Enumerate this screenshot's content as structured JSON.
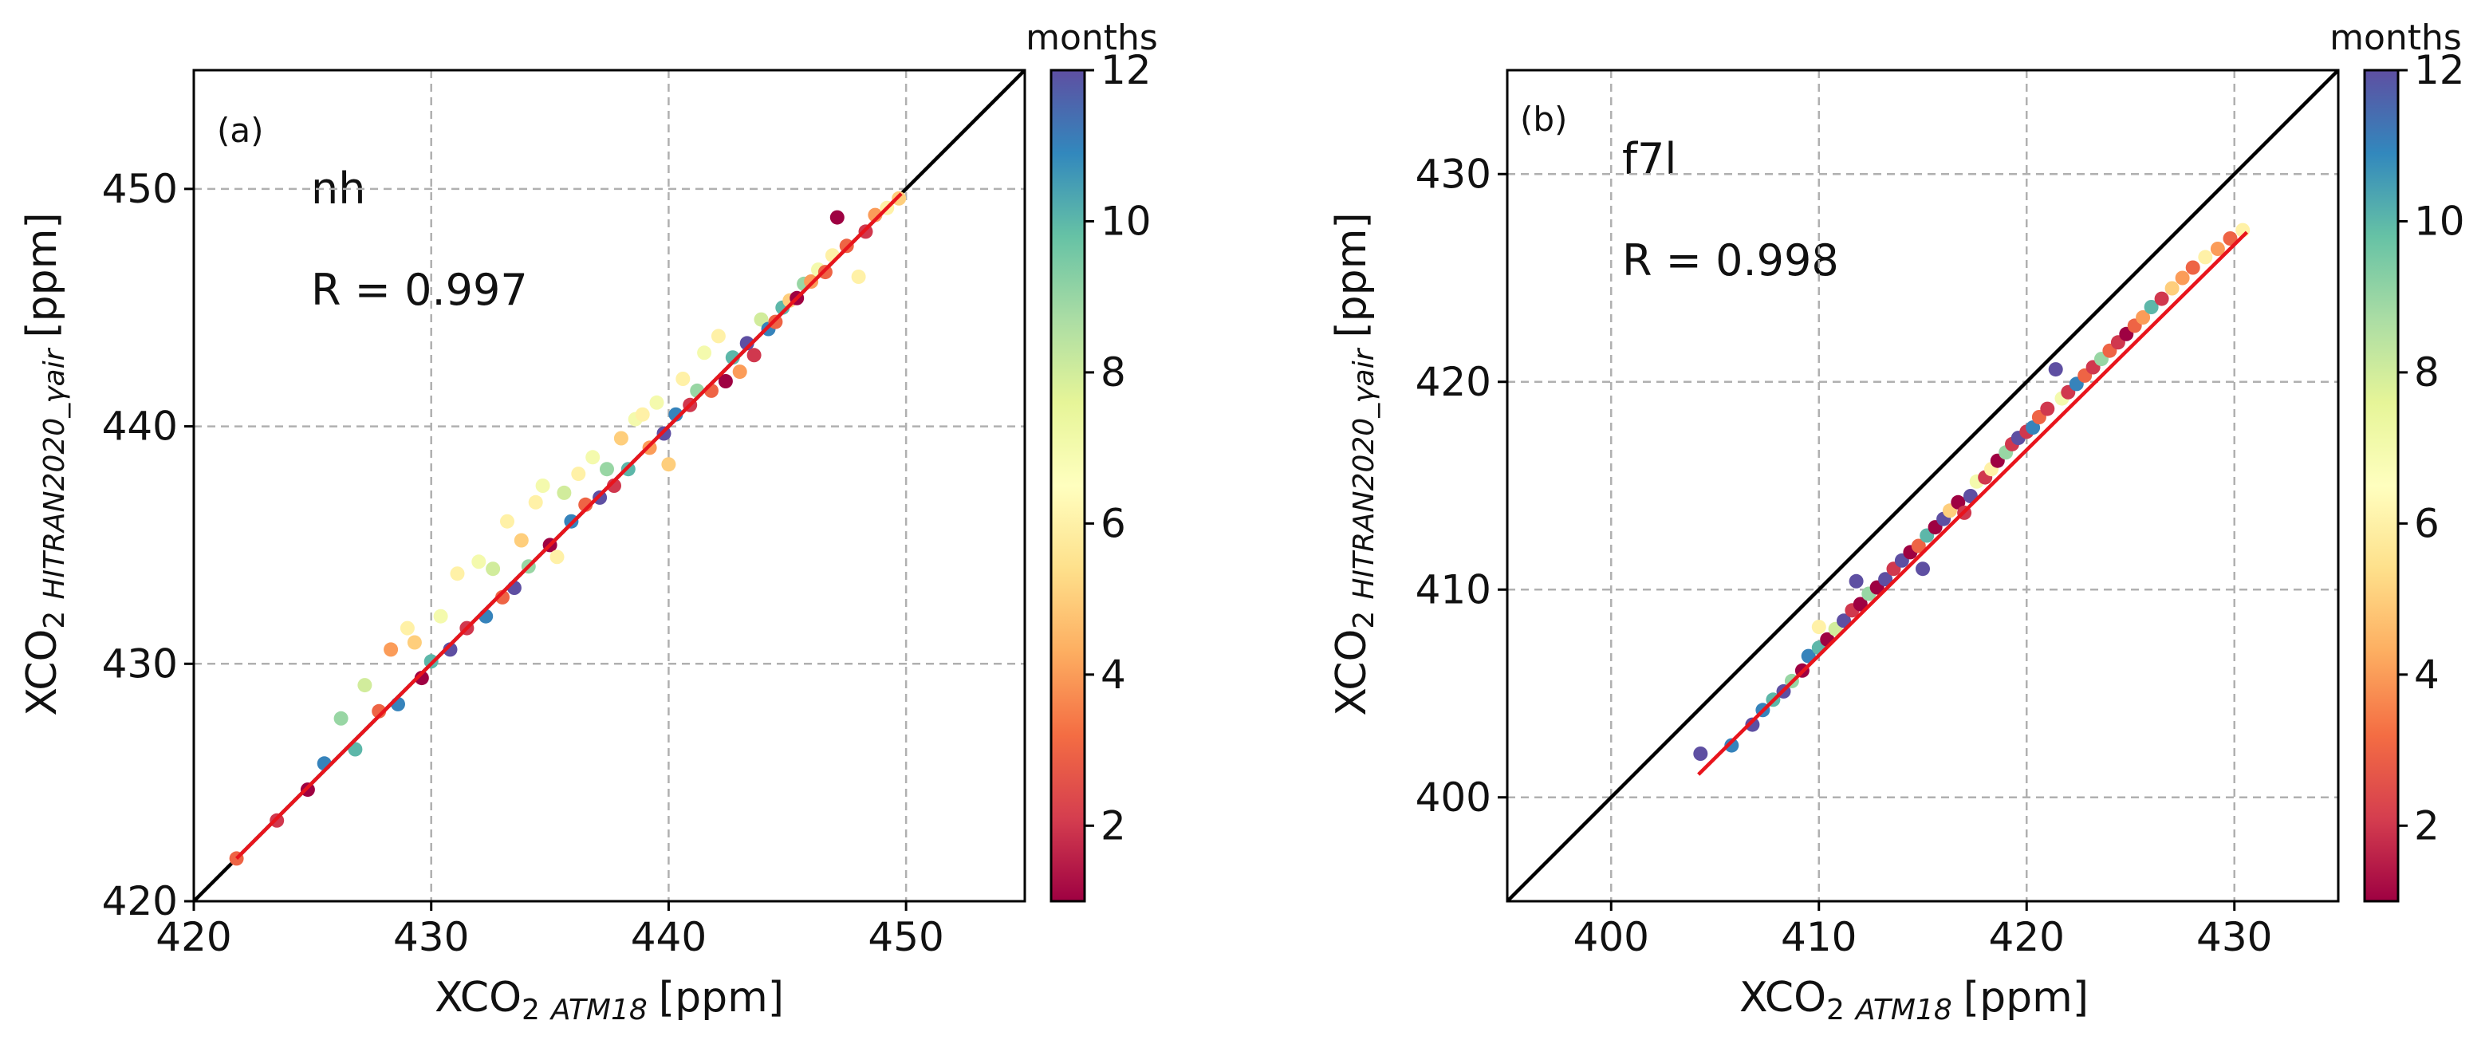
{
  "chart_data": [
    {
      "type": "scatter",
      "panel": "(a)",
      "site": "nh",
      "r_text": "R = 0.997",
      "xlabel": {
        "main": "XCO",
        "sub2": "2",
        "subscript": "ATM18",
        "unit": "[ppm]"
      },
      "ylabel": {
        "main": "XCO",
        "sub2": "2",
        "subscript": "HITRAN2020_γair",
        "unit": "[ppm]"
      },
      "xlim": [
        420,
        455
      ],
      "ylim": [
        420,
        455
      ],
      "xticks": [
        420,
        430,
        440,
        450
      ],
      "yticks": [
        420,
        430,
        440,
        450
      ],
      "one_to_one": true,
      "fit_line": {
        "x": [
          421.8,
          449.8
        ],
        "y": [
          421.8,
          449.8
        ]
      },
      "color_label": "months",
      "color_range": [
        1,
        12
      ],
      "color_ticks": [
        2,
        4,
        6,
        8,
        10,
        12
      ],
      "points": [
        [
          421.8,
          421.8,
          3
        ],
        [
          423.5,
          423.4,
          2
        ],
        [
          424.8,
          424.7,
          1
        ],
        [
          425.5,
          425.8,
          11
        ],
        [
          426.2,
          427.7,
          9
        ],
        [
          426.8,
          426.4,
          10
        ],
        [
          427.2,
          429.1,
          8
        ],
        [
          427.8,
          428.0,
          3
        ],
        [
          428.3,
          430.6,
          4
        ],
        [
          428.6,
          428.3,
          11
        ],
        [
          429.0,
          431.5,
          6
        ],
        [
          429.3,
          430.9,
          5
        ],
        [
          429.6,
          429.4,
          1
        ],
        [
          430.0,
          430.1,
          10
        ],
        [
          430.4,
          432.0,
          7
        ],
        [
          430.8,
          430.6,
          12
        ],
        [
          431.1,
          433.8,
          6
        ],
        [
          431.5,
          431.5,
          2
        ],
        [
          432.0,
          434.3,
          7
        ],
        [
          432.3,
          432.0,
          11
        ],
        [
          432.6,
          434.0,
          8
        ],
        [
          433.0,
          432.8,
          3
        ],
        [
          433.2,
          436.0,
          6
        ],
        [
          433.5,
          433.2,
          12
        ],
        [
          433.8,
          435.2,
          5
        ],
        [
          434.1,
          434.1,
          9
        ],
        [
          434.4,
          436.8,
          6
        ],
        [
          434.7,
          437.5,
          7
        ],
        [
          435.0,
          435.0,
          1
        ],
        [
          435.3,
          434.5,
          6
        ],
        [
          435.6,
          437.2,
          8
        ],
        [
          435.9,
          436.0,
          11
        ],
        [
          436.2,
          438.0,
          6
        ],
        [
          436.5,
          436.7,
          3
        ],
        [
          436.8,
          438.7,
          7
        ],
        [
          437.1,
          437.0,
          12
        ],
        [
          437.4,
          438.2,
          9
        ],
        [
          437.7,
          437.5,
          2
        ],
        [
          438.0,
          439.5,
          5
        ],
        [
          438.3,
          438.2,
          10
        ],
        [
          438.6,
          440.3,
          7
        ],
        [
          438.9,
          440.5,
          6
        ],
        [
          439.2,
          439.1,
          4
        ],
        [
          439.5,
          441.0,
          7
        ],
        [
          439.8,
          439.7,
          12
        ],
        [
          440.0,
          438.4,
          5
        ],
        [
          440.3,
          440.5,
          11
        ],
        [
          440.6,
          442.0,
          6
        ],
        [
          440.9,
          440.9,
          2
        ],
        [
          441.2,
          441.5,
          9
        ],
        [
          441.5,
          443.1,
          7
        ],
        [
          441.8,
          441.5,
          3
        ],
        [
          442.1,
          443.8,
          6
        ],
        [
          442.4,
          441.9,
          1
        ],
        [
          442.7,
          442.9,
          10
        ],
        [
          443.0,
          442.3,
          4
        ],
        [
          443.3,
          443.5,
          12
        ],
        [
          443.6,
          443.0,
          2
        ],
        [
          443.9,
          444.5,
          8
        ],
        [
          444.2,
          444.1,
          11
        ],
        [
          444.5,
          444.4,
          3
        ],
        [
          444.8,
          445.0,
          10
        ],
        [
          445.1,
          445.3,
          5
        ],
        [
          445.4,
          445.4,
          1
        ],
        [
          445.7,
          446.0,
          9
        ],
        [
          446.0,
          446.1,
          4
        ],
        [
          446.3,
          446.6,
          7
        ],
        [
          446.6,
          446.5,
          3
        ],
        [
          446.9,
          447.2,
          6
        ],
        [
          447.1,
          448.8,
          1
        ],
        [
          447.5,
          447.6,
          3
        ],
        [
          448.0,
          446.3,
          6
        ],
        [
          448.3,
          448.2,
          2
        ],
        [
          448.7,
          448.9,
          4
        ],
        [
          449.2,
          449.2,
          6
        ],
        [
          449.7,
          449.6,
          5
        ]
      ]
    },
    {
      "type": "scatter",
      "panel": "(b)",
      "site": "f7l",
      "r_text": "R = 0.998",
      "xlabel": {
        "main": "XCO",
        "sub2": "2",
        "subscript": "ATM18",
        "unit": "[ppm]"
      },
      "ylabel": {
        "main": "XCO",
        "sub2": "2",
        "subscript": "HITRAN2020_γair",
        "unit": "[ppm]"
      },
      "xlim": [
        395,
        435
      ],
      "ylim": [
        395,
        435
      ],
      "xticks": [
        400,
        410,
        420,
        430
      ],
      "yticks": [
        400,
        410,
        420,
        430
      ],
      "one_to_one": true,
      "fit_line": {
        "x": [
          404.2,
          430.6
        ],
        "y": [
          401.1,
          427.2
        ]
      },
      "color_label": "months",
      "color_range": [
        1,
        12
      ],
      "color_ticks": [
        2,
        4,
        6,
        8,
        10,
        12
      ],
      "points": [
        [
          404.3,
          402.1,
          12
        ],
        [
          405.8,
          402.5,
          11
        ],
        [
          406.8,
          403.5,
          12
        ],
        [
          407.3,
          404.2,
          11
        ],
        [
          407.8,
          404.7,
          10
        ],
        [
          408.3,
          405.1,
          12
        ],
        [
          408.7,
          405.6,
          9
        ],
        [
          409.2,
          406.1,
          1
        ],
        [
          409.5,
          406.8,
          11
        ],
        [
          410.0,
          407.2,
          10
        ],
        [
          410.0,
          408.2,
          6
        ],
        [
          410.4,
          407.6,
          1
        ],
        [
          410.8,
          408.1,
          8
        ],
        [
          411.2,
          408.5,
          12
        ],
        [
          411.6,
          409.0,
          2
        ],
        [
          411.8,
          410.4,
          12
        ],
        [
          412.0,
          409.3,
          1
        ],
        [
          412.4,
          409.8,
          9
        ],
        [
          412.8,
          410.1,
          1
        ],
        [
          413.2,
          410.5,
          12
        ],
        [
          413.6,
          411.0,
          2
        ],
        [
          414.0,
          411.4,
          12
        ],
        [
          414.4,
          411.8,
          1
        ],
        [
          414.8,
          412.1,
          3
        ],
        [
          415.0,
          411.0,
          12
        ],
        [
          415.2,
          412.6,
          10
        ],
        [
          415.6,
          413.0,
          1
        ],
        [
          416.0,
          413.4,
          12
        ],
        [
          416.3,
          413.8,
          5
        ],
        [
          416.7,
          414.2,
          1
        ],
        [
          417.0,
          413.7,
          2
        ],
        [
          417.3,
          414.5,
          12
        ],
        [
          417.6,
          415.2,
          7
        ],
        [
          418.0,
          415.4,
          2
        ],
        [
          418.3,
          415.8,
          6
        ],
        [
          418.6,
          416.2,
          1
        ],
        [
          419.0,
          416.6,
          9
        ],
        [
          419.3,
          417.0,
          2
        ],
        [
          419.6,
          417.3,
          12
        ],
        [
          420.0,
          417.6,
          2
        ],
        [
          420.3,
          417.8,
          11
        ],
        [
          420.6,
          418.3,
          3
        ],
        [
          421.0,
          418.7,
          2
        ],
        [
          421.4,
          420.6,
          12
        ],
        [
          421.7,
          419.2,
          7
        ],
        [
          422.0,
          419.5,
          2
        ],
        [
          422.4,
          419.9,
          11
        ],
        [
          422.8,
          420.3,
          3
        ],
        [
          423.2,
          420.7,
          2
        ],
        [
          423.6,
          421.1,
          9
        ],
        [
          424.0,
          421.5,
          3
        ],
        [
          424.4,
          421.9,
          2
        ],
        [
          424.8,
          422.3,
          1
        ],
        [
          425.2,
          422.7,
          3
        ],
        [
          425.6,
          423.1,
          4
        ],
        [
          426.0,
          423.6,
          10
        ],
        [
          426.5,
          424.0,
          2
        ],
        [
          427.0,
          424.5,
          5
        ],
        [
          427.5,
          425.0,
          4
        ],
        [
          428.0,
          425.5,
          3
        ],
        [
          428.6,
          426.0,
          6
        ],
        [
          429.2,
          426.4,
          4
        ],
        [
          429.8,
          426.9,
          3
        ],
        [
          430.4,
          427.3,
          6
        ]
      ]
    }
  ]
}
